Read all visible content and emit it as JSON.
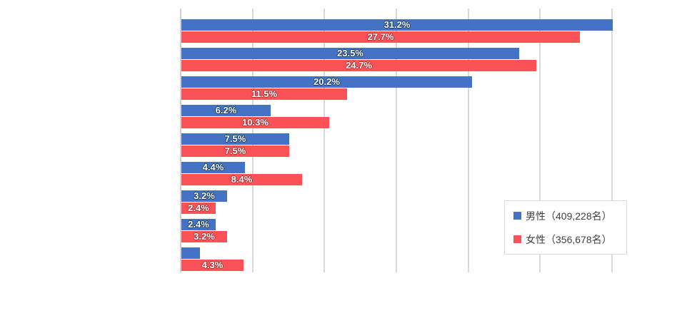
{
  "page": {
    "background_color": "#ffffff"
  },
  "chart_data": {
    "type": "bar",
    "orientation": "horizontal",
    "title": "",
    "xlabel": "",
    "ylabel": "",
    "categories": [
      "",
      "",
      "",
      "",
      "",
      "",
      "",
      "",
      ""
    ],
    "categories_visible": false,
    "series": [
      {
        "name": "男性（409,228名）",
        "color": "#4472c4",
        "values": [
          31.2,
          23.5,
          20.2,
          6.2,
          7.5,
          4.4,
          3.2,
          2.4,
          1.3
        ],
        "labels": [
          "31.2%",
          "23.5%",
          "20.2%",
          "6.2%",
          "7.5%",
          "4.4%",
          "3.2%",
          "2.4%",
          ""
        ]
      },
      {
        "name": "女性（356,678名）",
        "color": "#fb5257",
        "values": [
          27.7,
          24.7,
          11.5,
          10.3,
          7.5,
          8.4,
          2.4,
          3.2,
          4.3
        ],
        "labels": [
          "27.7%",
          "24.7%",
          "11.5%",
          "10.3%",
          "7.5%",
          "8.4%",
          "2.4%",
          "3.2%",
          "4.3%"
        ]
      }
    ],
    "xlim": [
      0,
      30
    ],
    "gridline_interval": 5,
    "grid": true,
    "axis_tick_labels_visible": false,
    "bars_clipped_to_xmax": true,
    "gridline_color": "#d9d9d9",
    "label_text_color": "#ffffff",
    "legend_position": "inside-right-bottom",
    "legend_border_color": "#d9d9d9",
    "legend_text_color": "#404040"
  }
}
